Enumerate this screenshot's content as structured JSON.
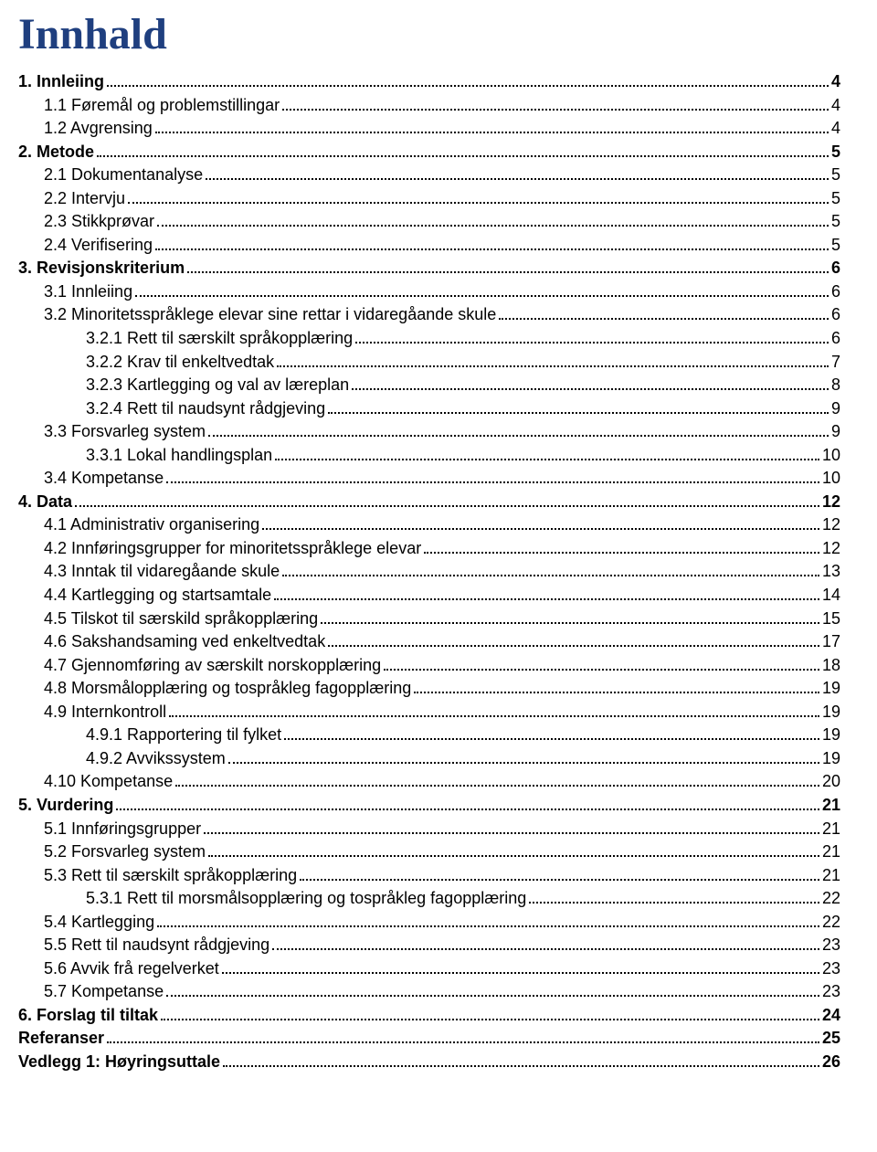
{
  "title": "Innhald",
  "colors": {
    "title": "#1f3f7f",
    "text": "#000000",
    "background": "#ffffff"
  },
  "typography": {
    "title_font": "Times New Roman",
    "title_size_pt": 36,
    "body_font": "Arial",
    "body_size_pt": 13
  },
  "toc": [
    {
      "label": "1. Innleiing",
      "page": "4",
      "level": 0
    },
    {
      "label": "1.1 Føremål og problemstillingar",
      "page": "4",
      "level": 1
    },
    {
      "label": "1.2 Avgrensing",
      "page": "4",
      "level": 1
    },
    {
      "label": "2. Metode",
      "page": "5",
      "level": 0
    },
    {
      "label": "2.1 Dokumentanalyse",
      "page": "5",
      "level": 1
    },
    {
      "label": "2.2 Intervju",
      "page": "5",
      "level": 1
    },
    {
      "label": "2.3 Stikkprøvar",
      "page": "5",
      "level": 1
    },
    {
      "label": "2.4 Verifisering",
      "page": "5",
      "level": 1
    },
    {
      "label": "3. Revisjonskriterium",
      "page": "6",
      "level": 0
    },
    {
      "label": "3.1 Innleiing",
      "page": "6",
      "level": 1
    },
    {
      "label": "3.2 Minoritetsspråklege elevar sine rettar i vidaregåande skule",
      "page": "6",
      "level": 1
    },
    {
      "label": "3.2.1 Rett til særskilt språkopplæring",
      "page": "6",
      "level": 2
    },
    {
      "label": "3.2.2 Krav til enkeltvedtak",
      "page": "7",
      "level": 2
    },
    {
      "label": "3.2.3 Kartlegging og val av læreplan",
      "page": "8",
      "level": 2
    },
    {
      "label": "3.2.4 Rett til naudsynt rådgjeving",
      "page": "9",
      "level": 2
    },
    {
      "label": "3.3 Forsvarleg system",
      "page": "9",
      "level": 1
    },
    {
      "label": "3.3.1 Lokal handlingsplan",
      "page": "10",
      "level": 2
    },
    {
      "label": "3.4 Kompetanse",
      "page": "10",
      "level": 1
    },
    {
      "label": "4. Data",
      "page": "12",
      "level": 0
    },
    {
      "label": "4.1 Administrativ organisering",
      "page": "12",
      "level": 1
    },
    {
      "label": "4.2 Innføringsgrupper for minoritetsspråklege elevar",
      "page": "12",
      "level": 1
    },
    {
      "label": "4.3 Inntak til vidaregåande skule",
      "page": "13",
      "level": 1
    },
    {
      "label": "4.4 Kartlegging og startsamtale",
      "page": "14",
      "level": 1
    },
    {
      "label": "4.5 Tilskot til særskild språkopplæring",
      "page": "15",
      "level": 1
    },
    {
      "label": "4.6 Sakshandsaming ved enkeltvedtak",
      "page": "17",
      "level": 1
    },
    {
      "label": "4.7 Gjennomføring av særskilt norskopplæring",
      "page": "18",
      "level": 1
    },
    {
      "label": "4.8 Morsmålopplæring og tospråkleg fagopplæring",
      "page": "19",
      "level": 1
    },
    {
      "label": "4.9 Internkontroll",
      "page": "19",
      "level": 1
    },
    {
      "label": "4.9.1 Rapportering til fylket",
      "page": "19",
      "level": 2
    },
    {
      "label": "4.9.2 Avvikssystem",
      "page": "19",
      "level": 2
    },
    {
      "label": "4.10      Kompetanse",
      "page": "20",
      "level": 1
    },
    {
      "label": "5. Vurdering",
      "page": "21",
      "level": 0
    },
    {
      "label": "5.1 Innføringsgrupper",
      "page": "21",
      "level": 1
    },
    {
      "label": "5.2 Forsvarleg system",
      "page": "21",
      "level": 1
    },
    {
      "label": "5.3 Rett til særskilt språkopplæring",
      "page": "21",
      "level": 1
    },
    {
      "label": "5.3.1 Rett til morsmålsopplæring og tospråkleg fagopplæring",
      "page": "22",
      "level": 2
    },
    {
      "label": "5.4 Kartlegging",
      "page": "22",
      "level": 1
    },
    {
      "label": "5.5 Rett til naudsynt rådgjeving",
      "page": "23",
      "level": 1
    },
    {
      "label": "5.6 Avvik frå regelverket",
      "page": "23",
      "level": 1
    },
    {
      "label": "5.7 Kompetanse",
      "page": "23",
      "level": 1
    },
    {
      "label": "6. Forslag til tiltak",
      "page": "24",
      "level": 0
    },
    {
      "label": "Referanser",
      "page": "25",
      "level": "ref"
    },
    {
      "label": "Vedlegg 1: Høyringsuttale",
      "page": "26",
      "level": "ref"
    }
  ]
}
